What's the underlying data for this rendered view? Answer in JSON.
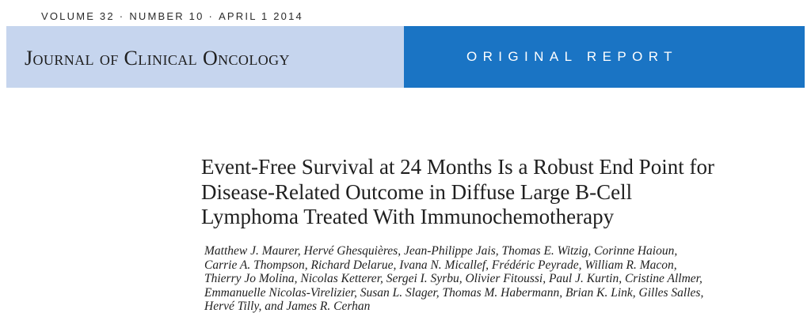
{
  "issue": {
    "volume": "VOLUME 32",
    "number": "NUMBER 10",
    "date": "APRIL 1 2014",
    "separator": "·"
  },
  "banner": {
    "journal_name": "Journal of Clinical Oncology",
    "report_type": "ORIGINAL REPORT",
    "colors": {
      "left_background": "#c6d5ee",
      "right_background": "#1a74c4"
    }
  },
  "article": {
    "title_lines": [
      "Event-Free Survival at 24 Months Is a Robust End Point for",
      "Disease-Related Outcome in Diffuse Large B-Cell",
      "Lymphoma Treated With Immunochemotherapy"
    ],
    "author_lines": [
      "Matthew J. Maurer, Hervé Ghesquières, Jean-Philippe Jais, Thomas E. Witzig, Corinne Haioun,",
      "Carrie A. Thompson, Richard Delarue, Ivana N. Micallef, Frédéric Peyrade, William R. Macon,",
      "Thierry Jo Molina, Nicolas Ketterer, Sergei I. Syrbu, Olivier Fitoussi, Paul J. Kurtin, Cristine Allmer,",
      "Emmanuelle Nicolas-Virelizier, Susan L. Slager, Thomas M. Habermann, Brian K. Link, Gilles Salles,",
      "Hervé Tilly, and James R. Cerhan"
    ]
  }
}
